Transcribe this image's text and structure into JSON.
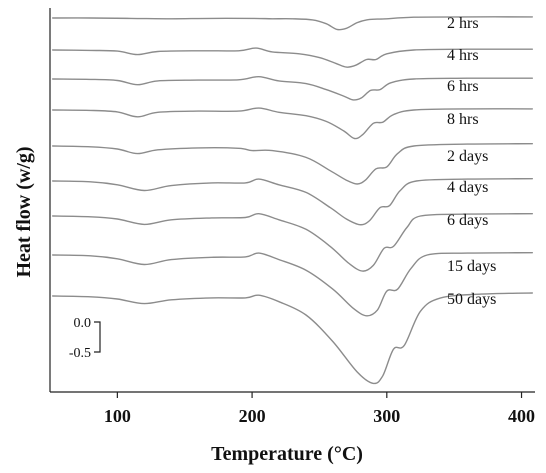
{
  "chart_data": {
    "type": "line",
    "xlabel": "Temperature (°C)",
    "ylabel": "Heat flow (w/g)",
    "xlim": [
      50,
      410
    ],
    "x_ticks": [
      100,
      200,
      300,
      400
    ],
    "x_tick_labels": [
      "100",
      "200",
      "300",
      "400"
    ],
    "y_ticks_visible": false,
    "grid": false,
    "legend": "inline-labels-right",
    "scale_bar": {
      "labels": [
        "0.0",
        "-0.5"
      ],
      "values": [
        0.0,
        -0.5
      ]
    },
    "series": [
      {
        "name": "2 hrs",
        "x": [
          52,
          80,
          110,
          140,
          170,
          200,
          215,
          230,
          245,
          255,
          263,
          270,
          278,
          285,
          293,
          300,
          320,
          360,
          408
        ],
        "y": [
          0.0,
          0.0,
          -0.01,
          -0.02,
          -0.01,
          -0.01,
          -0.02,
          -0.02,
          -0.05,
          -0.15,
          -0.3,
          -0.27,
          -0.12,
          -0.05,
          -0.03,
          -0.02,
          0.02,
          0.03,
          0.03
        ]
      },
      {
        "name": "4 hrs",
        "x": [
          52,
          80,
          100,
          115,
          130,
          160,
          190,
          203,
          215,
          235,
          250,
          262,
          270,
          277,
          285,
          292,
          300,
          320,
          360,
          408
        ],
        "y": [
          0.0,
          -0.01,
          -0.03,
          -0.12,
          -0.04,
          -0.02,
          -0.02,
          0.05,
          -0.05,
          -0.1,
          -0.2,
          -0.35,
          -0.45,
          -0.4,
          -0.25,
          -0.25,
          -0.1,
          0.0,
          0.02,
          0.02
        ]
      },
      {
        "name": "6 hrs",
        "x": [
          52,
          80,
          100,
          115,
          130,
          160,
          190,
          205,
          220,
          240,
          255,
          268,
          275,
          281,
          288,
          295,
          303,
          320,
          360,
          408
        ],
        "y": [
          0.0,
          -0.01,
          -0.04,
          -0.15,
          -0.05,
          -0.03,
          -0.02,
          0.06,
          -0.05,
          -0.12,
          -0.28,
          -0.45,
          -0.55,
          -0.5,
          -0.3,
          -0.28,
          -0.1,
          0.0,
          0.02,
          0.02
        ]
      },
      {
        "name": "8 hrs",
        "x": [
          52,
          80,
          100,
          115,
          130,
          160,
          190,
          205,
          220,
          240,
          255,
          268,
          276,
          282,
          290,
          297,
          305,
          320,
          360,
          408
        ],
        "y": [
          0.0,
          -0.01,
          -0.05,
          -0.18,
          -0.06,
          -0.03,
          -0.03,
          0.05,
          -0.06,
          -0.15,
          -0.3,
          -0.55,
          -0.75,
          -0.65,
          -0.35,
          -0.32,
          -0.12,
          0.0,
          0.03,
          0.03
        ]
      },
      {
        "name": "2 days",
        "x": [
          52,
          80,
          100,
          115,
          130,
          160,
          190,
          200,
          215,
          240,
          258,
          270,
          278,
          284,
          292,
          300,
          308,
          320,
          360,
          408
        ],
        "y": [
          0.0,
          -0.02,
          -0.08,
          -0.2,
          -0.1,
          -0.05,
          -0.06,
          -0.12,
          -0.12,
          -0.3,
          -0.65,
          -0.9,
          -1.0,
          -0.9,
          -0.6,
          -0.55,
          -0.2,
          0.0,
          0.05,
          0.06
        ]
      },
      {
        "name": "4 days",
        "x": [
          52,
          80,
          100,
          120,
          140,
          170,
          195,
          205,
          220,
          240,
          258,
          270,
          280,
          287,
          295,
          302,
          310,
          322,
          360,
          408
        ],
        "y": [
          0.0,
          -0.02,
          -0.1,
          -0.25,
          -0.12,
          -0.05,
          -0.05,
          0.05,
          -0.1,
          -0.3,
          -0.7,
          -1.0,
          -1.15,
          -1.05,
          -0.7,
          -0.65,
          -0.25,
          0.0,
          0.05,
          0.06
        ]
      },
      {
        "name": "6 days",
        "x": [
          52,
          80,
          100,
          120,
          140,
          170,
          195,
          205,
          220,
          240,
          258,
          272,
          282,
          290,
          298,
          305,
          315,
          325,
          360,
          408
        ],
        "y": [
          0.0,
          -0.02,
          -0.08,
          -0.22,
          -0.1,
          -0.05,
          -0.04,
          0.06,
          -0.1,
          -0.35,
          -0.8,
          -1.25,
          -1.45,
          -1.3,
          -0.85,
          -0.8,
          -0.3,
          0.0,
          0.05,
          0.06
        ]
      },
      {
        "name": "15 days",
        "x": [
          52,
          80,
          100,
          120,
          140,
          170,
          195,
          205,
          220,
          240,
          260,
          275,
          285,
          293,
          300,
          308,
          318,
          330,
          360,
          408
        ],
        "y": [
          0.0,
          -0.02,
          -0.1,
          -0.25,
          -0.12,
          -0.06,
          -0.05,
          0.05,
          -0.12,
          -0.4,
          -0.9,
          -1.4,
          -1.6,
          -1.45,
          -0.95,
          -0.9,
          -0.35,
          0.0,
          0.05,
          0.06
        ]
      },
      {
        "name": "50 days",
        "x": [
          52,
          80,
          100,
          120,
          140,
          170,
          195,
          205,
          220,
          240,
          260,
          278,
          290,
          297,
          305,
          313,
          325,
          340,
          370,
          408
        ],
        "y": [
          0.0,
          -0.02,
          -0.08,
          -0.2,
          -0.1,
          -0.05,
          -0.05,
          0.02,
          -0.15,
          -0.5,
          -1.2,
          -2.0,
          -2.3,
          -2.1,
          -1.4,
          -1.3,
          -0.4,
          -0.05,
          0.05,
          0.08
        ]
      }
    ]
  }
}
